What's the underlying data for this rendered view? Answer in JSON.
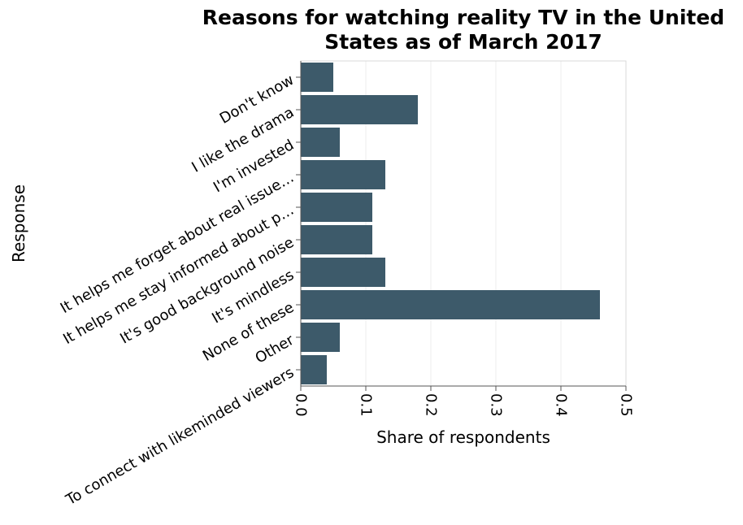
{
  "chart_data": {
    "type": "bar",
    "orientation": "horizontal",
    "title": "Reasons for watching reality TV in the United States as of March 2017",
    "title_lines": [
      "Reasons for watching reality TV in the United",
      "States as of March 2017"
    ],
    "xlabel": "Share of respondents",
    "ylabel": "Response",
    "categories": [
      "Don't know",
      "I like the drama",
      "I'm invested",
      "It helps me forget about real issue…",
      "It helps me stay informed about p…",
      "It's good background noise",
      "It's mindless",
      "None of these",
      "Other",
      "To connect with likeminded viewers"
    ],
    "values": [
      0.05,
      0.18,
      0.06,
      0.13,
      0.11,
      0.11,
      0.13,
      0.46,
      0.06,
      0.04
    ],
    "xlim": [
      0,
      0.5
    ],
    "xticks": [
      0.0,
      0.1,
      0.2,
      0.3,
      0.4,
      0.5
    ],
    "xtick_labels": [
      "0.0",
      "0.1",
      "0.2",
      "0.3",
      "0.4",
      "0.5"
    ],
    "grid": true,
    "bar_color": "#3d5a6a",
    "grid_color": "#ececec",
    "frame_color": "#d9d9d9"
  }
}
